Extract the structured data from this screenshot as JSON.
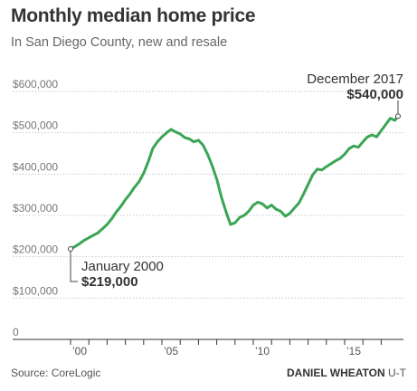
{
  "chart_data": {
    "type": "line",
    "title": "Monthly median home price",
    "subtitle": "In San Diego County, new and resale",
    "ylim": [
      0,
      600000
    ],
    "xlim": [
      2000,
      2017.92
    ],
    "y_ticks": [
      {
        "value": 0,
        "label": "0"
      },
      {
        "value": 100000,
        "label": "$100,000"
      },
      {
        "value": 200000,
        "label": "$200,000"
      },
      {
        "value": 300000,
        "label": "$300,000"
      },
      {
        "value": 400000,
        "label": "$400,000"
      },
      {
        "value": 500000,
        "label": "$500,000"
      },
      {
        "value": 600000,
        "label": "$600,000"
      }
    ],
    "x_ticks": [
      {
        "value": 2000,
        "label": "’00"
      },
      {
        "value": 2005,
        "label": "’05"
      },
      {
        "value": 2010,
        "label": "’10"
      },
      {
        "value": 2015,
        "label": "’15"
      }
    ],
    "grid": true,
    "color": "#3aa655",
    "series": [
      {
        "x": [
          2000.0,
          2000.25,
          2000.5,
          2000.75,
          2001.0,
          2001.25,
          2001.5,
          2001.75,
          2002.0,
          2002.25,
          2002.5,
          2002.75,
          2003.0,
          2003.25,
          2003.5,
          2003.75,
          2004.0,
          2004.25,
          2004.5,
          2004.75,
          2005.0,
          2005.25,
          2005.5,
          2005.75,
          2006.0,
          2006.25,
          2006.5,
          2006.75,
          2007.0,
          2007.25,
          2007.5,
          2007.75,
          2008.0,
          2008.25,
          2008.5,
          2008.75,
          2009.0,
          2009.25,
          2009.5,
          2009.75,
          2010.0,
          2010.25,
          2010.5,
          2010.75,
          2011.0,
          2011.25,
          2011.5,
          2011.75,
          2012.0,
          2012.25,
          2012.5,
          2012.75,
          2013.0,
          2013.25,
          2013.5,
          2013.75,
          2014.0,
          2014.25,
          2014.5,
          2014.75,
          2015.0,
          2015.25,
          2015.5,
          2015.75,
          2016.0,
          2016.25,
          2016.5,
          2016.75,
          2017.0,
          2017.25,
          2017.5,
          2017.75,
          2017.92
        ],
        "y": [
          219000,
          225000,
          232000,
          240000,
          246000,
          252000,
          258000,
          268000,
          278000,
          292000,
          308000,
          322000,
          338000,
          352000,
          368000,
          382000,
          402000,
          430000,
          462000,
          478000,
          490000,
          500000,
          508000,
          502000,
          497000,
          488000,
          485000,
          478000,
          482000,
          470000,
          448000,
          420000,
          388000,
          345000,
          310000,
          278000,
          282000,
          295000,
          300000,
          310000,
          325000,
          332000,
          328000,
          318000,
          325000,
          315000,
          310000,
          298000,
          305000,
          318000,
          330000,
          352000,
          375000,
          398000,
          412000,
          410000,
          418000,
          425000,
          432000,
          438000,
          448000,
          462000,
          468000,
          465000,
          478000,
          490000,
          495000,
          490000,
          505000,
          520000,
          535000,
          530000,
          540000
        ]
      }
    ],
    "annotations": [
      {
        "date": "January 2000",
        "value": "$219,000"
      },
      {
        "date": "December 2017",
        "value": "$540,000"
      }
    ],
    "source": "Source: CoreLogic",
    "credit_name": "DANIEL WHEATON",
    "credit_org": "U-T"
  }
}
